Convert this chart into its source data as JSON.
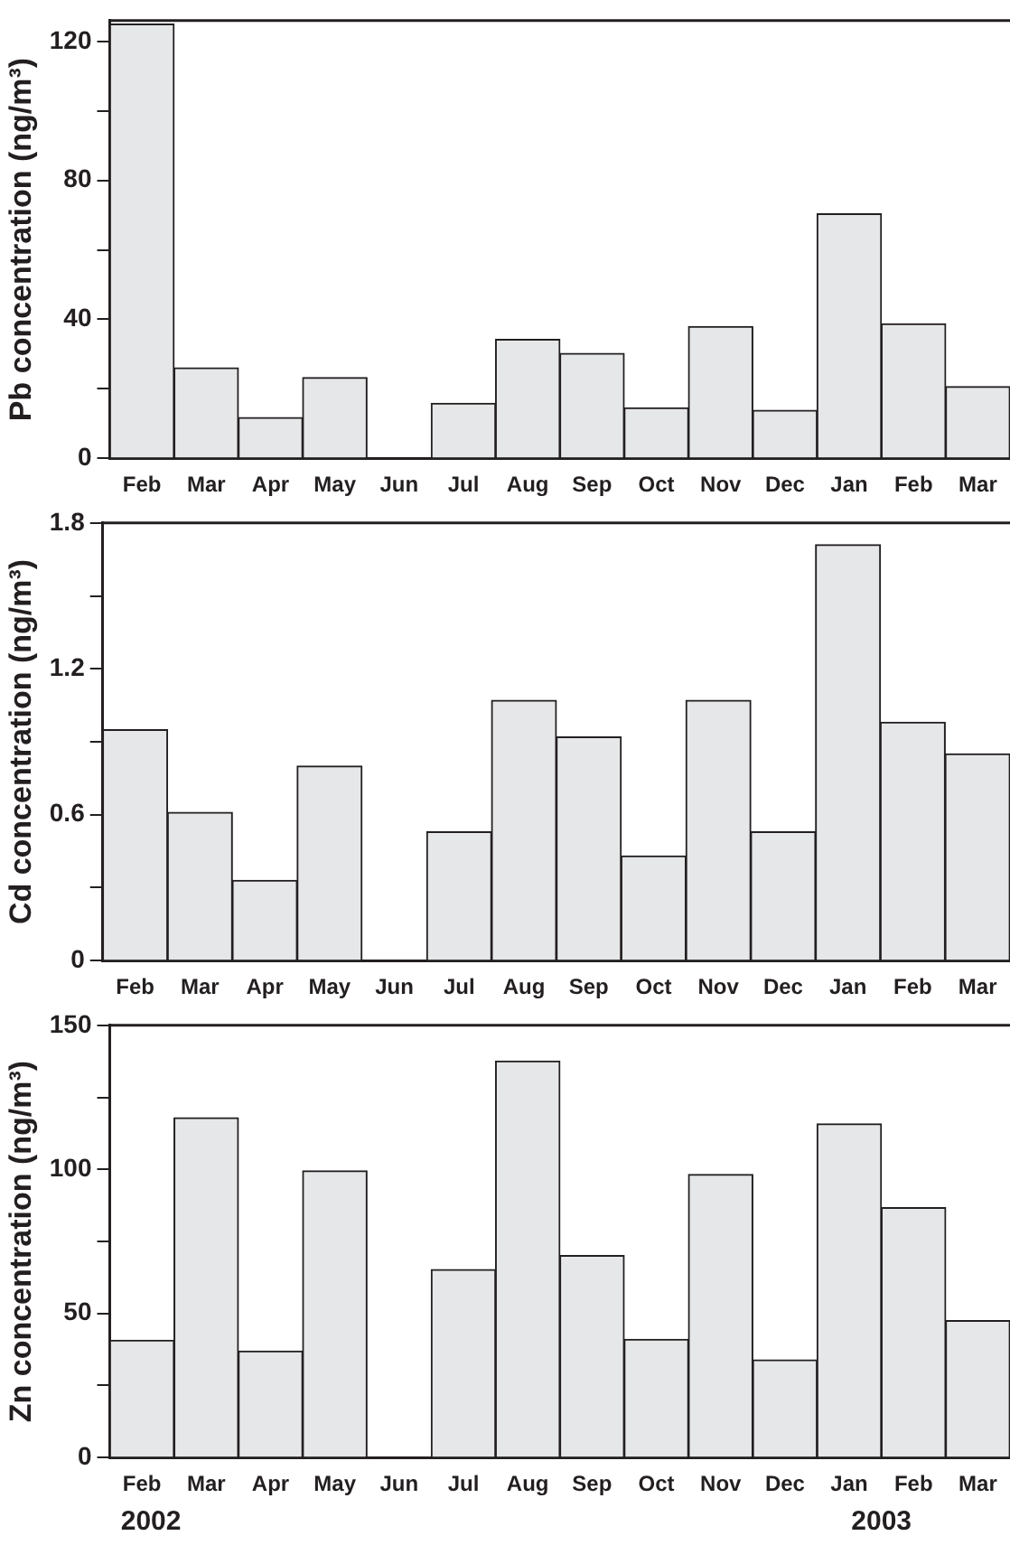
{
  "chart_data": [
    {
      "type": "bar",
      "ylabel": "Pb concentration (ng/m³)",
      "categories": [
        "Feb",
        "Mar",
        "Apr",
        "May",
        "Jun",
        "Jul",
        "Aug",
        "Sep",
        "Oct",
        "Nov",
        "Dec",
        "Jan",
        "Feb",
        "Mar"
      ],
      "values": [
        125,
        26,
        11.7,
        23.2,
        0,
        15.8,
        34.2,
        30.2,
        14.5,
        37.9,
        13.8,
        70.4,
        38.7,
        20.6
      ],
      "color": "#e6e7e8",
      "ylim": [
        0,
        126
      ],
      "yticks": [
        0,
        {
          "value": 20,
          "label": null
        },
        40,
        {
          "value": 60,
          "label": null
        },
        80,
        {
          "value": 100,
          "label": null
        },
        120
      ],
      "grid": false,
      "legend": false
    },
    {
      "type": "bar",
      "ylabel": "Cd concentration (ng/m³)",
      "categories": [
        "Feb",
        "Mar",
        "Apr",
        "May",
        "Jun",
        "Jul",
        "Aug",
        "Sep",
        "Oct",
        "Nov",
        "Dec",
        "Jan",
        "Feb",
        "Mar"
      ],
      "values": [
        0.95,
        0.61,
        0.33,
        0.8,
        0,
        0.53,
        1.07,
        0.92,
        0.43,
        1.07,
        0.53,
        1.71,
        0.98,
        0.85
      ],
      "color": "#e6e7e8",
      "ylim": [
        0,
        1.8
      ],
      "yticks": [
        0,
        {
          "value": 0.3,
          "label": null
        },
        0.6,
        {
          "value": 0.9,
          "label": null
        },
        1.2,
        {
          "value": 1.5,
          "label": null
        },
        1.8
      ],
      "grid": false,
      "legend": false
    },
    {
      "type": "bar",
      "ylabel": "Zn concentration (ng/m³)",
      "categories": [
        "Feb",
        "Mar",
        "Apr",
        "May",
        "Jun",
        "Jul",
        "Aug",
        "Sep",
        "Oct",
        "Nov",
        "Dec",
        "Jan",
        "Feb",
        "Mar"
      ],
      "values": [
        40.7,
        117.9,
        36.9,
        99.5,
        0,
        65.2,
        137.6,
        70.1,
        41,
        98.2,
        33.9,
        115.8,
        86.7,
        47.5
      ],
      "color": "#e6e7e8",
      "ylim": [
        0,
        150
      ],
      "yticks": [
        0,
        {
          "value": 25,
          "label": null
        },
        50,
        {
          "value": 75,
          "label": null
        },
        100,
        {
          "value": 125,
          "label": null
        },
        150
      ],
      "grid": false,
      "legend": false,
      "annotations": [
        "2002",
        "2003"
      ]
    }
  ]
}
